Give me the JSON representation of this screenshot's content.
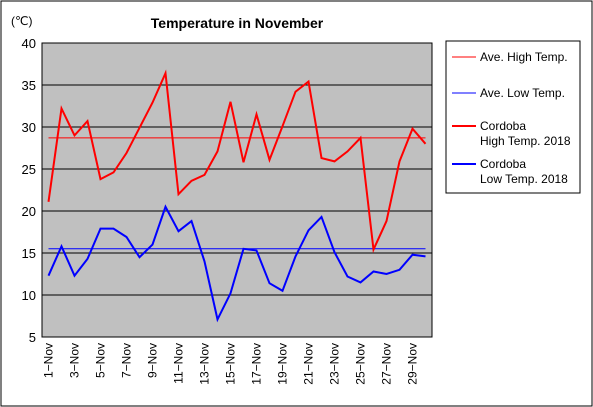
{
  "chart_data": {
    "type": "line",
    "title": "Temperature in November",
    "ylabel": "(℃)",
    "xlabel": "",
    "ylim": [
      5,
      40
    ],
    "yticks": [
      5,
      10,
      15,
      20,
      25,
      30,
      35,
      40
    ],
    "grid": true,
    "legend_position": "right",
    "categories": [
      "1-Nov",
      "2-Nov",
      "3-Nov",
      "4-Nov",
      "5-Nov",
      "6-Nov",
      "7-Nov",
      "8-Nov",
      "9-Nov",
      "10-Nov",
      "11-Nov",
      "12-Nov",
      "13-Nov",
      "14-Nov",
      "15-Nov",
      "16-Nov",
      "17-Nov",
      "18-Nov",
      "19-Nov",
      "20-Nov",
      "21-Nov",
      "22-Nov",
      "23-Nov",
      "24-Nov",
      "25-Nov",
      "26-Nov",
      "27-Nov",
      "28-Nov",
      "29-Nov",
      "30-Nov"
    ],
    "tick_labels": [
      "1-Nov",
      "3-Nov",
      "5-Nov",
      "7-Nov",
      "9-Nov",
      "11-Nov",
      "13-Nov",
      "15-Nov",
      "17-Nov",
      "19-Nov",
      "21-Nov",
      "23-Nov",
      "25-Nov",
      "27-Nov",
      "29-Nov"
    ],
    "series": [
      {
        "name": "Ave. High Temp.",
        "color": "#ff0000",
        "width": 1,
        "values": [
          28.7,
          28.7,
          28.7,
          28.7,
          28.7,
          28.7,
          28.7,
          28.7,
          28.7,
          28.7,
          28.7,
          28.7,
          28.7,
          28.7,
          28.7,
          28.7,
          28.7,
          28.7,
          28.7,
          28.7,
          28.7,
          28.7,
          28.7,
          28.7,
          28.7,
          28.7,
          28.7,
          28.7,
          28.7,
          28.7
        ]
      },
      {
        "name": "Ave. Low Temp.",
        "color": "#0000ff",
        "width": 1,
        "values": [
          15.5,
          15.5,
          15.5,
          15.5,
          15.5,
          15.5,
          15.5,
          15.5,
          15.5,
          15.5,
          15.5,
          15.5,
          15.5,
          15.5,
          15.5,
          15.5,
          15.5,
          15.5,
          15.5,
          15.5,
          15.5,
          15.5,
          15.5,
          15.5,
          15.5,
          15.5,
          15.5,
          15.5,
          15.5,
          15.5
        ]
      },
      {
        "name": "Cordoba High Temp. 2018",
        "name_lines": [
          "Cordoba",
          "High Temp. 2018"
        ],
        "color": "#ff0000",
        "width": 2,
        "values": [
          21.1,
          32.2,
          29.0,
          30.7,
          23.8,
          24.6,
          26.9,
          29.9,
          32.9,
          36.4,
          22.0,
          23.6,
          24.3,
          27.1,
          33.0,
          25.8,
          31.5,
          26.1,
          30.1,
          34.2,
          35.4,
          26.3,
          25.9,
          27.1,
          28.7,
          15.4,
          18.8,
          25.9,
          29.8,
          28.0
        ]
      },
      {
        "name": "Cordoba Low Temp. 2018",
        "name_lines": [
          "Cordoba",
          "Low Temp. 2018"
        ],
        "color": "#0000ff",
        "width": 2,
        "values": [
          12.3,
          15.8,
          12.3,
          14.3,
          17.9,
          17.9,
          16.9,
          14.5,
          16.0,
          20.5,
          17.6,
          18.8,
          14.0,
          7.1,
          10.2,
          15.5,
          15.3,
          11.4,
          10.5,
          14.6,
          17.7,
          19.3,
          15.1,
          12.2,
          11.5,
          12.8,
          12.5,
          13.0,
          14.8,
          14.6
        ]
      }
    ]
  }
}
